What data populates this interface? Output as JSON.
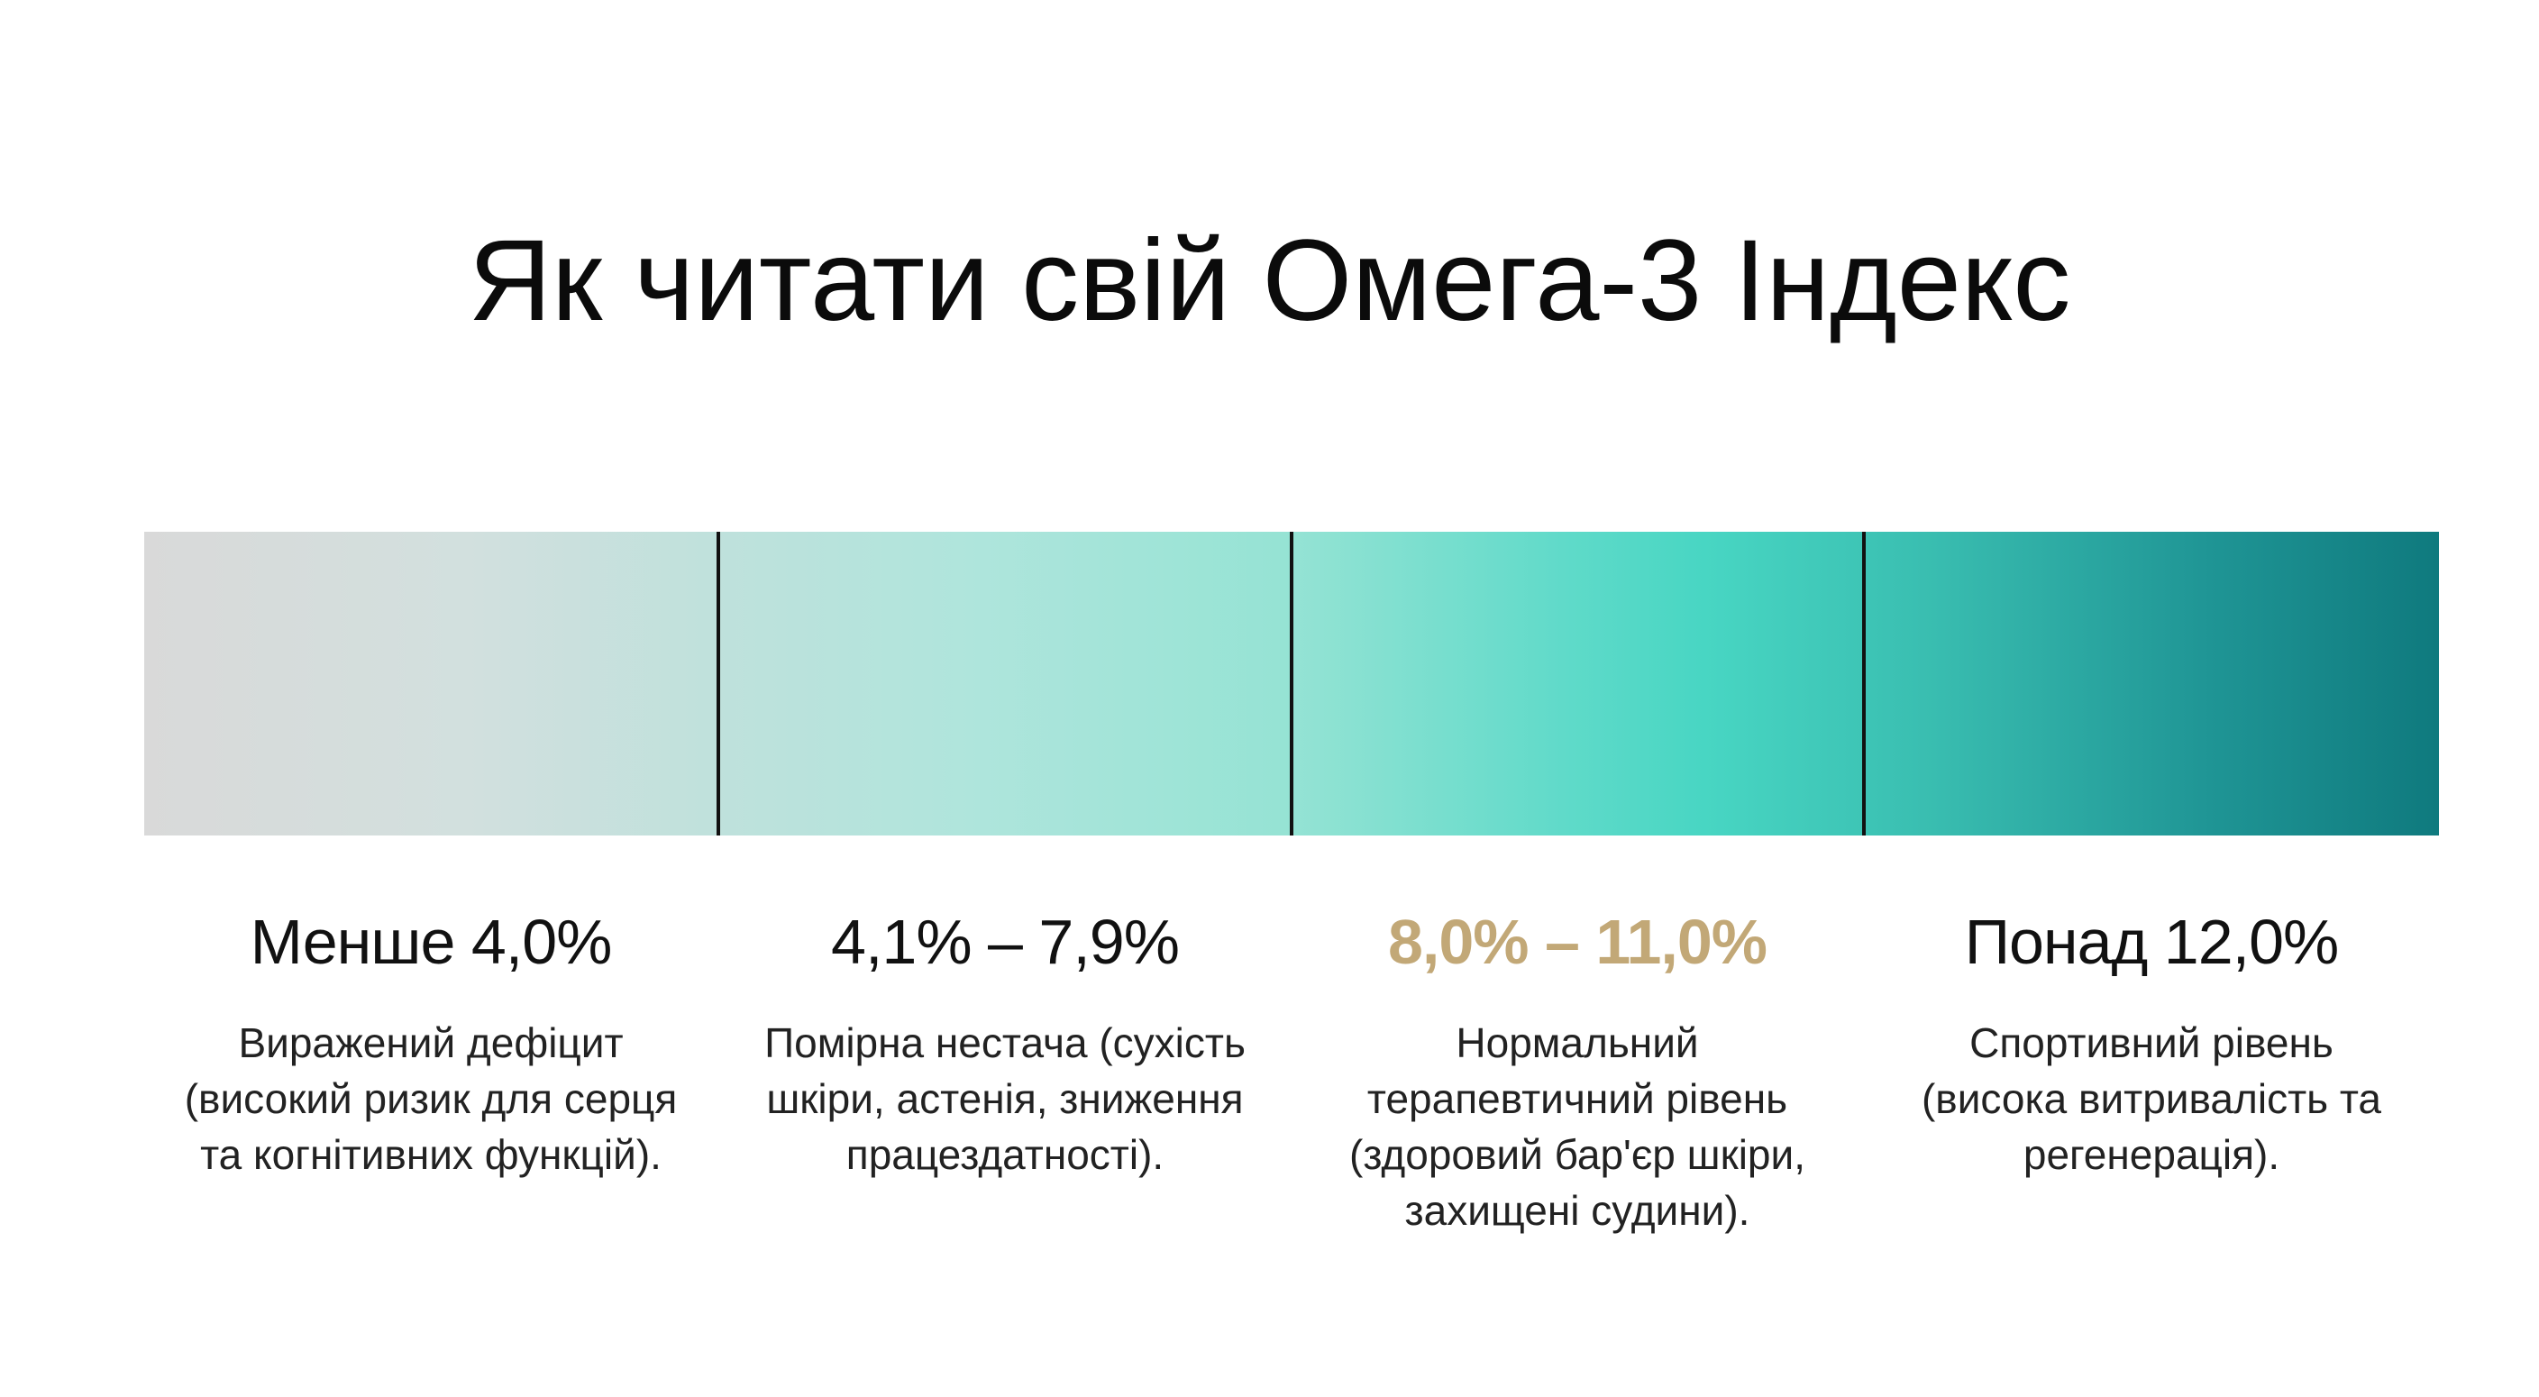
{
  "page": {
    "title": "Як читати свій Омега-3 Індекс"
  },
  "colors": {
    "scale_start": "#d9d9d9",
    "scale_mid": "#48d6c3",
    "scale_end": "#0f7a7e",
    "highlight": "#c2a877",
    "text": "#111111"
  },
  "ranges": [
    {
      "label": "Менше 4,0%",
      "description": "Виражений дефіцит (високий ризик для серця та когнітивних функцій).",
      "highlighted": false
    },
    {
      "label": "4,1% – 7,9%",
      "description": "Помірна нестача (сухість шкіри, астенія, зниження працездатності).",
      "highlighted": false
    },
    {
      "label": "8,0% – 11,0%",
      "description": "Нормальний терапевтичний рівень (здоровий бар'єр шкіри, захищені судини).",
      "highlighted": true
    },
    {
      "label": "Понад 12,0%",
      "description": "Спортивний рівень (висока витривалість та регенерація).",
      "highlighted": false
    }
  ]
}
